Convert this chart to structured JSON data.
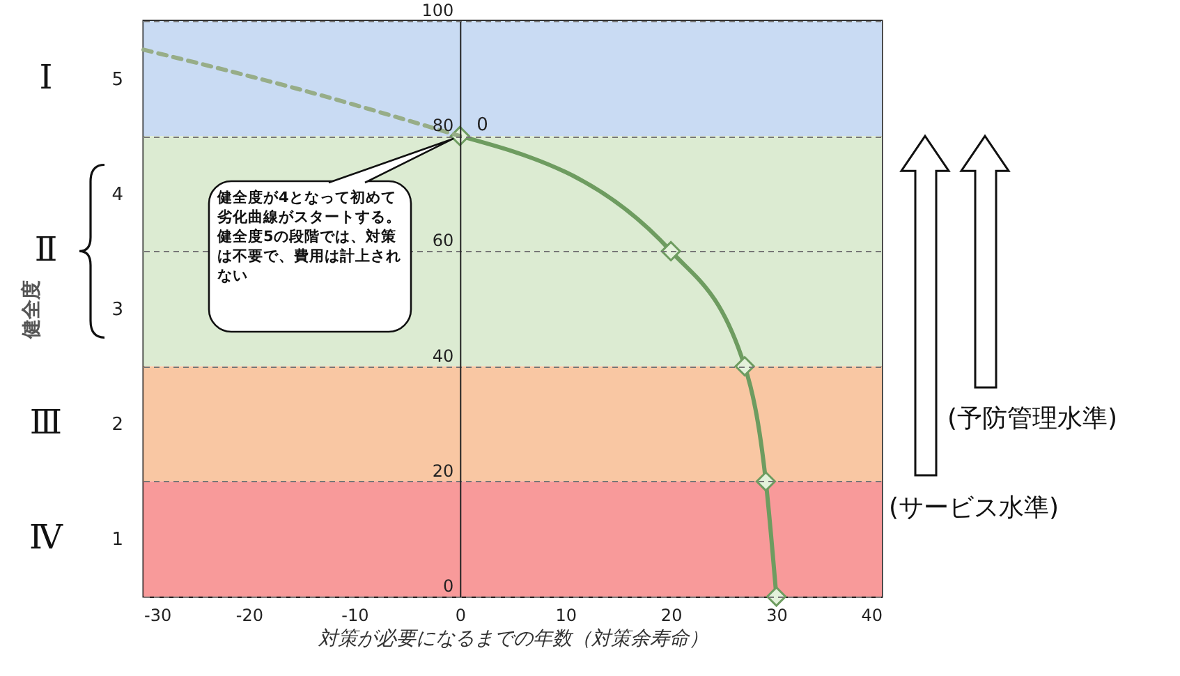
{
  "chart_data": {
    "type": "line",
    "xlabel": "対策が必要になるまでの年数（対策余寿命）",
    "y2label": "健全度",
    "xlim": [
      -30,
      40
    ],
    "xticks": [
      -30,
      -20,
      -10,
      0,
      10,
      20,
      30,
      40
    ],
    "ylim": [
      0,
      100
    ],
    "yticks": [
      0,
      20,
      40,
      60,
      80,
      100
    ],
    "y2lim": [
      0.5,
      5.5
    ],
    "y2ticks": [
      1,
      2,
      3,
      4,
      5
    ],
    "grid": "y",
    "series": [
      {
        "color": "#6e9c60",
        "x": [
          0,
          20,
          27,
          29,
          30
        ],
        "values": [
          80,
          60,
          40,
          20,
          0
        ],
        "marker": "diamond",
        "line_style": "solid"
      },
      {
        "color": "#97ad88",
        "x": [
          -30,
          -15,
          0
        ],
        "values": [
          95,
          88,
          80
        ],
        "marker": "none",
        "line_style": "dashed"
      }
    ],
    "bands": [
      {
        "axis": "y",
        "from": 80,
        "to": 100,
        "color": "#c9dbf3",
        "label": "Ⅰ"
      },
      {
        "axis": "y",
        "from": 40,
        "to": 80,
        "color": "#dcebd2",
        "label": "Ⅱ"
      },
      {
        "axis": "y",
        "from": 20,
        "to": 40,
        "color": "#f9c7a3",
        "label": "Ⅲ"
      },
      {
        "axis": "y",
        "from": 0,
        "to": 20,
        "color": "#f89a9a",
        "label": "Ⅳ"
      }
    ],
    "annotations": [
      "健全度が4となって初めて劣化曲線がスタートする。健全度5の段階では、対策は不要で、費用は計上されない",
      "(予防管理水準)",
      "(サービス水準)",
      {
        "text": "0",
        "x": 0,
        "y": 80
      }
    ]
  }
}
